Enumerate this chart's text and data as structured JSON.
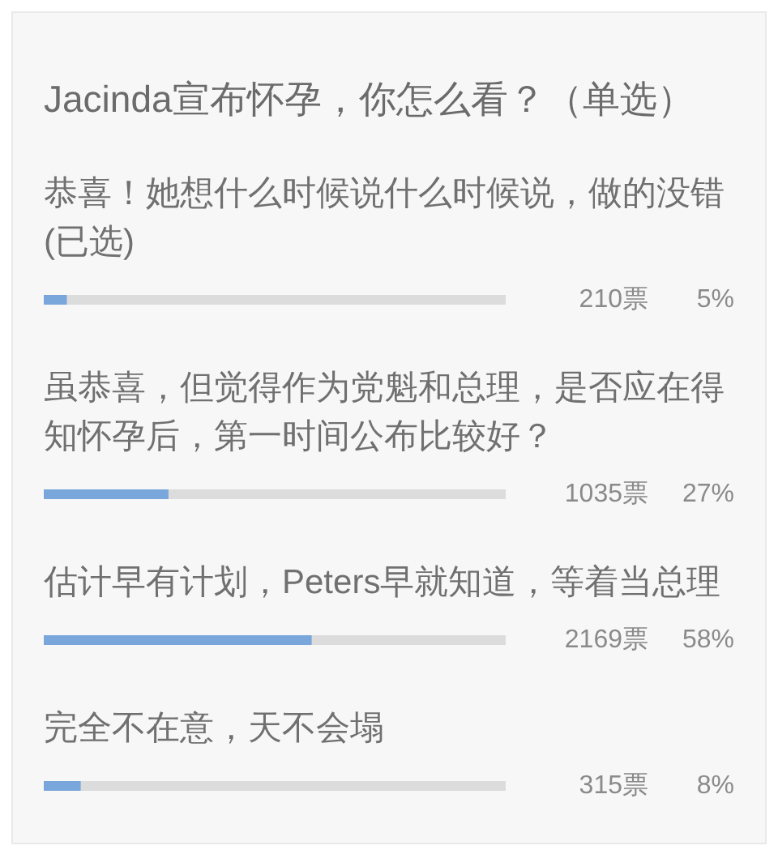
{
  "chart_data": {
    "type": "bar",
    "orientation": "horizontal",
    "title": "Jacinda宣布怀孕，你怎么看？（单选）",
    "categories": [
      "恭喜！她想什么时候说什么时候说，做的没错(已选)",
      "虽恭喜，但觉得作为党魁和总理，是否应在得知怀孕后，第一时间公布比较好？",
      "估计早有计划，Peters早就知道，等着当总理",
      "完全不在意，天不会塌"
    ],
    "values": [
      5,
      27,
      58,
      8
    ],
    "value_labels": [
      "5%",
      "27%",
      "58%",
      "8%"
    ],
    "color": "#7aa7db",
    "annotations": [
      "210票",
      "1035票",
      "2169票",
      "315票"
    ],
    "xlim": [
      0,
      100
    ],
    "tick_labels": "y"
  }
}
